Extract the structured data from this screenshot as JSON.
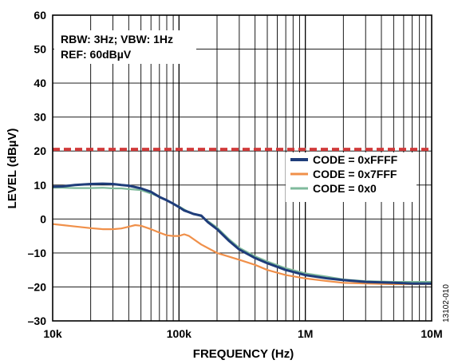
{
  "chart_data": {
    "type": "line",
    "xlabel": "FREQUENCY (Hz)",
    "ylabel": "LEVEL (dBµV)",
    "xscale": "log",
    "xlim": [
      10000,
      10000000
    ],
    "ylim": [
      -30,
      60
    ],
    "xticks": [
      {
        "value": 10000,
        "label": "10k"
      },
      {
        "value": 100000,
        "label": "100k"
      },
      {
        "value": 1000000,
        "label": "1M"
      },
      {
        "value": 10000000,
        "label": "10M"
      }
    ],
    "yticks": [
      60,
      50,
      40,
      30,
      20,
      10,
      0,
      -10,
      -20,
      -30
    ],
    "ytick_labels": [
      "60",
      "50",
      "40",
      "30",
      "20",
      "10",
      "0",
      "–10",
      "–20",
      "–30"
    ],
    "grid": true,
    "annotation_lines": [
      "RBW: 3Hz; VBW: 1Hz",
      "REF: 60dBµV"
    ],
    "figure_id": "13102-010",
    "limit_line": {
      "y": 20.5,
      "color": "#d03a3a",
      "style": "dashed"
    },
    "legend_position": "right-middle",
    "series": [
      {
        "name": "CODE = 0xFFFF",
        "color": "#1f3d7a",
        "x": [
          10000,
          12000,
          15000,
          20000,
          25000,
          30000,
          35000,
          40000,
          50000,
          60000,
          70000,
          80000,
          90000,
          100000,
          110000,
          120000,
          130000,
          150000,
          170000,
          200000,
          250000,
          300000,
          400000,
          500000,
          700000,
          1000000,
          1500000,
          2000000,
          3000000,
          5000000,
          7000000,
          10000000
        ],
        "y": [
          9.5,
          9.6,
          10,
          10.3,
          10.4,
          10.3,
          10,
          9.8,
          9,
          8,
          6.5,
          5.5,
          4.5,
          3.5,
          2.5,
          2,
          1.5,
          1,
          -1,
          -3,
          -6.5,
          -9,
          -11.5,
          -13,
          -15,
          -16.5,
          -17.5,
          -18,
          -18.5,
          -18.8,
          -19,
          -19
        ]
      },
      {
        "name": "CODE = 0x7FFF",
        "color": "#f0904a",
        "x": [
          10000,
          12000,
          15000,
          20000,
          25000,
          30000,
          35000,
          40000,
          45000,
          50000,
          60000,
          70000,
          80000,
          90000,
          100000,
          110000,
          120000,
          150000,
          200000,
          300000,
          400000,
          500000,
          700000,
          1000000,
          1500000,
          2000000,
          3000000,
          5000000,
          7000000,
          10000000
        ],
        "y": [
          -1.5,
          -1.8,
          -2.2,
          -2.7,
          -3,
          -3,
          -2.8,
          -2.3,
          -1.8,
          -2,
          -3,
          -4,
          -4.8,
          -5,
          -5,
          -4.5,
          -5,
          -7.5,
          -10,
          -12,
          -13.5,
          -15,
          -16.5,
          -17.5,
          -18.3,
          -18.8,
          -19,
          -19.2,
          -19.2,
          -19.2
        ]
      },
      {
        "name": "CODE = 0x0",
        "color": "#7fba9c",
        "x": [
          10000,
          12000,
          15000,
          20000,
          25000,
          30000,
          35000,
          40000,
          50000,
          60000,
          70000,
          80000,
          90000,
          100000,
          120000,
          150000,
          200000,
          250000,
          300000,
          400000,
          500000,
          700000,
          1000000,
          1500000,
          2000000,
          3000000,
          5000000,
          7000000,
          10000000
        ],
        "y": [
          9.2,
          9.2,
          9.1,
          9.1,
          9.2,
          9,
          9,
          8.8,
          8.5,
          7.5,
          6.5,
          5.5,
          4.5,
          3.7,
          2,
          0.8,
          -2.5,
          -6,
          -8.5,
          -11,
          -12.5,
          -14.5,
          -16,
          -17,
          -17.8,
          -18.3,
          -18.5,
          -18.5,
          -18.5
        ]
      }
    ]
  }
}
